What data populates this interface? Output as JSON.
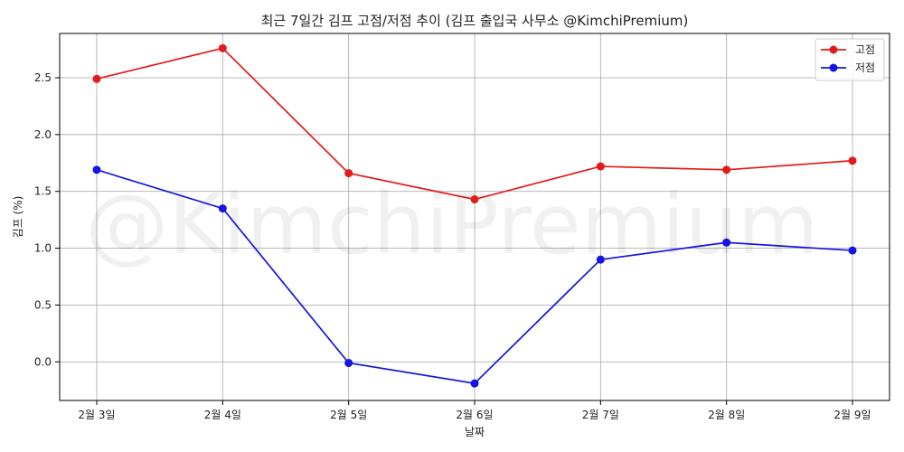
{
  "chart_data": {
    "type": "line",
    "title": "최근 7일간 김프 고점/저점 추이 (김프 출입국 사무소 @KimchiPremium)",
    "xlabel": "날짜",
    "ylabel": "김프 (%)",
    "categories": [
      "2월 3일",
      "2월 4일",
      "2월 5일",
      "2월 6일",
      "2월 7일",
      "2월 8일",
      "2월 9일"
    ],
    "series": [
      {
        "name": "고점",
        "color": "#e41a1a",
        "values": [
          2.49,
          2.76,
          1.66,
          1.43,
          1.72,
          1.69,
          1.77
        ]
      },
      {
        "name": "저점",
        "color": "#1414e6",
        "values": [
          1.69,
          1.35,
          -0.01,
          -0.19,
          0.9,
          1.05,
          0.98
        ]
      }
    ],
    "ylim": [
      -0.34,
      2.89
    ],
    "yticks": [
      "0.0",
      "0.5",
      "1.0",
      "1.5",
      "2.0",
      "2.5"
    ],
    "grid": true,
    "legend_position": "top-right",
    "watermark": "@KimchiPremium"
  }
}
